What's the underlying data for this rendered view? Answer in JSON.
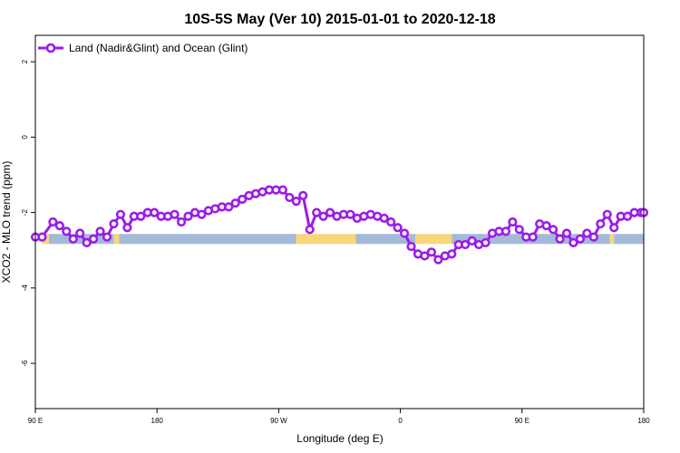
{
  "chart_data": {
    "type": "line",
    "title": "10S-5S May (Ver 10)   2015-01-01 to 2020-12-18",
    "xlabel": "Longitude (deg E)",
    "ylabel": "XCO2 - MLO trend (ppm)",
    "x_axis_note": "x values are longitude in degrees east; the axis spans 90 E eastward through 180 and 90 W to 0 and on to 180, i.e. 90 to 540",
    "xlim": [
      90,
      540
    ],
    "ylim": [
      -7.2,
      2.7
    ],
    "x_ticks": [
      {
        "value": 90,
        "label": "90 E"
      },
      {
        "value": 180,
        "label": "180"
      },
      {
        "value": 270,
        "label": "90 W"
      },
      {
        "value": 360,
        "label": "0"
      },
      {
        "value": 450,
        "label": "90 E"
      },
      {
        "value": 540,
        "label": "180"
      }
    ],
    "y_ticks": [
      {
        "value": 2,
        "label": "2"
      },
      {
        "value": 0,
        "label": "0"
      },
      {
        "value": -2,
        "label": "-2"
      },
      {
        "value": -4,
        "label": "-4"
      },
      {
        "value": -6,
        "label": "-6"
      }
    ],
    "grid": false,
    "legend_position": "top-left",
    "series": [
      {
        "name": "Land (Nadir&Glint) and Ocean (Glint)",
        "color": "#9b1de6",
        "marker": "open-circle",
        "x": [
          90,
          95,
          103,
          108,
          113,
          118,
          123,
          128,
          133,
          138,
          143,
          148,
          153,
          158,
          163,
          168,
          173,
          178,
          183,
          188,
          193,
          198,
          203,
          208,
          213,
          218,
          223,
          228,
          233,
          238,
          243,
          248,
          253,
          258,
          263,
          268,
          273,
          278,
          283,
          288,
          293,
          298,
          303,
          308,
          313,
          318,
          323,
          328,
          333,
          338,
          343,
          348,
          353,
          358,
          363,
          368,
          373,
          378,
          383,
          388,
          393,
          398,
          403,
          408,
          413,
          418,
          423,
          428,
          433,
          438,
          443,
          448,
          453,
          458,
          463,
          468,
          473,
          478,
          483,
          488,
          493,
          498,
          503,
          508,
          513,
          518,
          523,
          528,
          533,
          538,
          540
        ],
        "y": [
          -2.65,
          -2.65,
          -2.25,
          -2.35,
          -2.5,
          -2.7,
          -2.55,
          -2.8,
          -2.7,
          -2.5,
          -2.65,
          -2.3,
          -2.05,
          -2.4,
          -2.1,
          -2.1,
          -2.0,
          -2.0,
          -2.1,
          -2.1,
          -2.05,
          -2.25,
          -2.1,
          -2.0,
          -2.05,
          -1.95,
          -1.9,
          -1.85,
          -1.85,
          -1.75,
          -1.65,
          -1.55,
          -1.5,
          -1.45,
          -1.4,
          -1.4,
          -1.4,
          -1.6,
          -1.7,
          -1.55,
          -2.45,
          -2.0,
          -2.1,
          -2.0,
          -2.1,
          -2.05,
          -2.05,
          -2.15,
          -2.1,
          -2.05,
          -2.1,
          -2.15,
          -2.25,
          -2.4,
          -2.55,
          -2.9,
          -3.1,
          -3.15,
          -3.05,
          -3.25,
          -3.15,
          -3.1,
          -2.85,
          -2.85,
          -2.75,
          -2.85,
          -2.8,
          -2.55,
          -2.5,
          -2.5,
          -2.25,
          -2.45,
          -2.65,
          -2.65,
          -2.3,
          -2.35,
          -2.45,
          -2.7,
          -2.55,
          -2.8,
          -2.7,
          -2.55,
          -2.65,
          -2.3,
          -2.05,
          -2.4,
          -2.1,
          -2.1,
          -2.0,
          -2.0,
          -2.0
        ]
      }
    ],
    "land_ocean_strip": {
      "y": -2.7,
      "ocean_color": "#a4bad8",
      "land_color": "#f8d77a",
      "segments": [
        {
          "x0": 95,
          "x1": 100,
          "type": "land"
        },
        {
          "x0": 100,
          "x1": 148,
          "type": "ocean"
        },
        {
          "x0": 148,
          "x1": 152,
          "type": "land"
        },
        {
          "x0": 152,
          "x1": 283,
          "type": "ocean"
        },
        {
          "x0": 283,
          "x1": 327,
          "type": "land"
        },
        {
          "x0": 327,
          "x1": 371,
          "type": "ocean"
        },
        {
          "x0": 371,
          "x1": 398,
          "type": "land"
        },
        {
          "x0": 398,
          "x1": 515,
          "type": "ocean"
        },
        {
          "x0": 515,
          "x1": 518,
          "type": "land"
        },
        {
          "x0": 518,
          "x1": 540,
          "type": "ocean"
        }
      ]
    }
  }
}
